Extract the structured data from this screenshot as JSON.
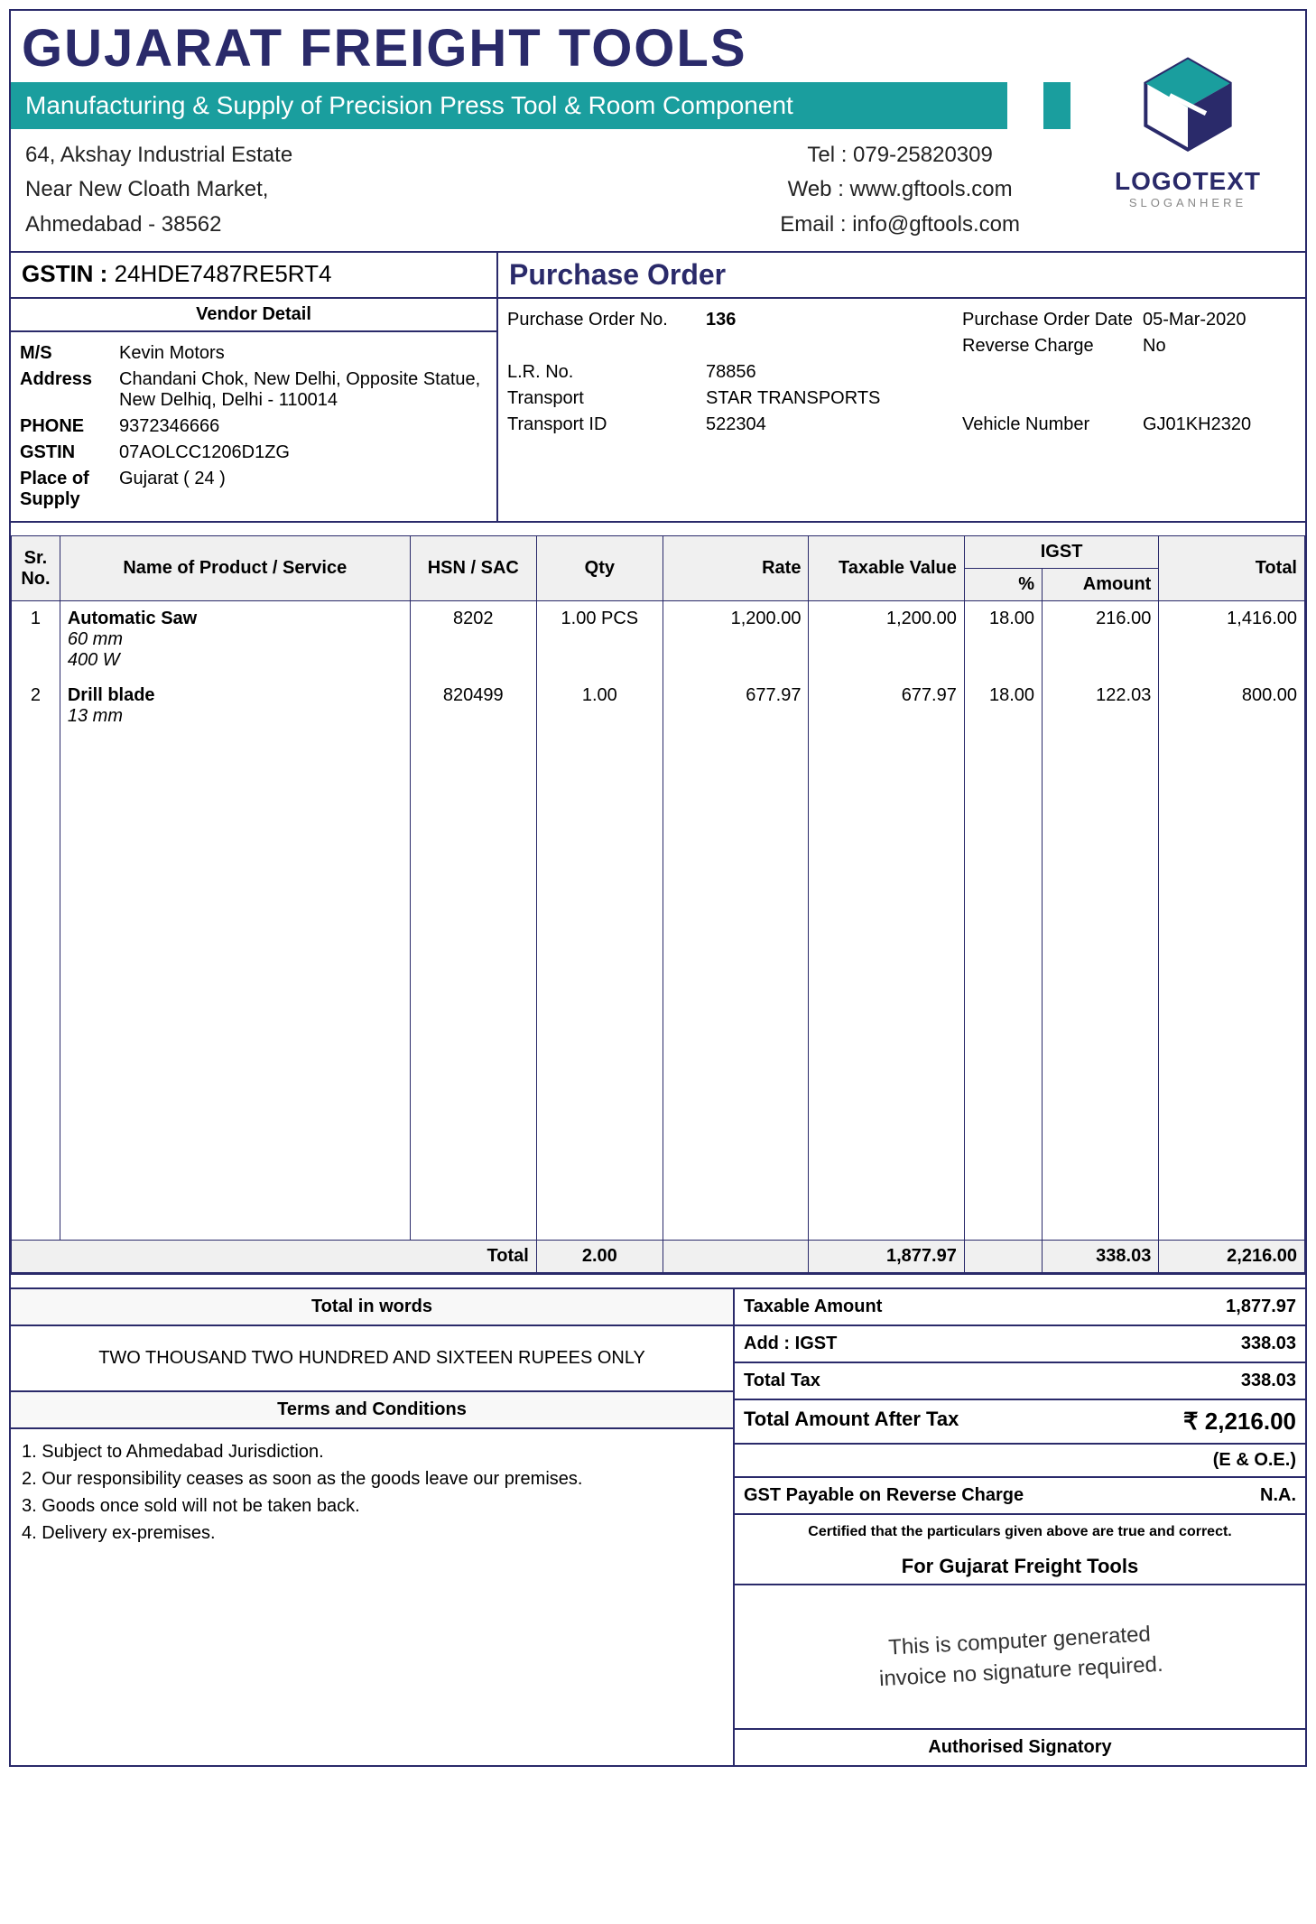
{
  "colors": {
    "primary": "#2a2a6a",
    "accent": "#1a9e9e",
    "bg": "#ffffff",
    "thead_bg": "#f0f0f0"
  },
  "company": {
    "name": "GUJARAT FREIGHT TOOLS",
    "tagline": "Manufacturing & Supply of Precision Press Tool & Room Component",
    "addr1": "64, Akshay Industrial Estate",
    "addr2": "Near New Cloath Market,",
    "addr3": "Ahmedabad - 38562",
    "tel": "Tel : 079-25820309",
    "web": "Web : www.gftools.com",
    "email": "Email : info@gftools.com",
    "logo_text": "LOGOTEXT",
    "logo_sub": "SLOGANHERE"
  },
  "gstin_label": "GSTIN :",
  "gstin": "24HDE7487RE5RT4",
  "doc_title": "Purchase Order",
  "vendor": {
    "header": "Vendor Detail",
    "ms_lbl": "M/S",
    "ms": "Kevin Motors",
    "addr_lbl": "Address",
    "addr": "Chandani Chok, New Delhi, Opposite Statue, New Delhiq, Delhi - 110014",
    "phone_lbl": "PHONE",
    "phone": "9372346666",
    "gstin_lbl": "GSTIN",
    "gstin": "07AOLCC1206D1ZG",
    "pos_lbl": "Place of Supply",
    "pos": "Gujarat ( 24 )"
  },
  "po": {
    "no_lbl": "Purchase Order No.",
    "no": "136",
    "date_lbl": "Purchase Order Date",
    "date": "05-Mar-2020",
    "rev_lbl": "Reverse Charge",
    "rev": "No",
    "lr_lbl": "L.R. No.",
    "lr": "78856",
    "tr_lbl": "Transport",
    "tr": "STAR TRANSPORTS",
    "tid_lbl": "Transport ID",
    "tid": "522304",
    "veh_lbl": "Vehicle Number",
    "veh": "GJ01KH2320"
  },
  "cols": {
    "sr": "Sr. No.",
    "name": "Name of Product / Service",
    "hsn": "HSN / SAC",
    "qty": "Qty",
    "rate": "Rate",
    "taxable": "Taxable Value",
    "igst": "IGST",
    "igst_pct": "%",
    "igst_amt": "Amount",
    "total": "Total"
  },
  "items": [
    {
      "sr": "1",
      "name": "Automatic Saw",
      "sub1": "60 mm",
      "sub2": "400 W",
      "hsn": "8202",
      "qty": "1.00 PCS",
      "rate": "1,200.00",
      "taxable": "1,200.00",
      "igst_pct": "18.00",
      "igst_amt": "216.00",
      "total": "1,416.00"
    },
    {
      "sr": "2",
      "name": "Drill blade",
      "sub1": "13 mm",
      "sub2": "",
      "hsn": "820499",
      "qty": "1.00",
      "rate": "677.97",
      "taxable": "677.97",
      "igst_pct": "18.00",
      "igst_amt": "122.03",
      "total": "800.00"
    }
  ],
  "totals_row": {
    "label": "Total",
    "qty": "2.00",
    "taxable": "1,877.97",
    "igst_amt": "338.03",
    "total": "2,216.00"
  },
  "words_hdr": "Total in words",
  "words": "TWO THOUSAND TWO HUNDRED AND SIXTEEN RUPEES ONLY",
  "terms_hdr": "Terms and Conditions",
  "terms": [
    "1. Subject to Ahmedabad Jurisdiction.",
    "2. Our responsibility ceases as soon as the goods leave our premises.",
    "3. Goods once sold will not be taken back.",
    "4. Delivery ex-premises."
  ],
  "summary": {
    "taxable_lbl": "Taxable Amount",
    "taxable": "1,877.97",
    "igst_lbl": "Add : IGST",
    "igst": "338.03",
    "totaltax_lbl": "Total Tax",
    "totaltax": "338.03",
    "after_lbl": "Total Amount After Tax",
    "after": "₹  2,216.00",
    "eoe": "(E & O.E.)",
    "gstpay_lbl": "GST Payable on Reverse Charge",
    "gstpay": "N.A.",
    "cert": "Certified that the particulars given above are true and correct.",
    "for": "For Gujarat Freight Tools",
    "sig1": "This is computer generated",
    "sig2": "invoice no signature required.",
    "auth": "Authorised Signatory"
  }
}
